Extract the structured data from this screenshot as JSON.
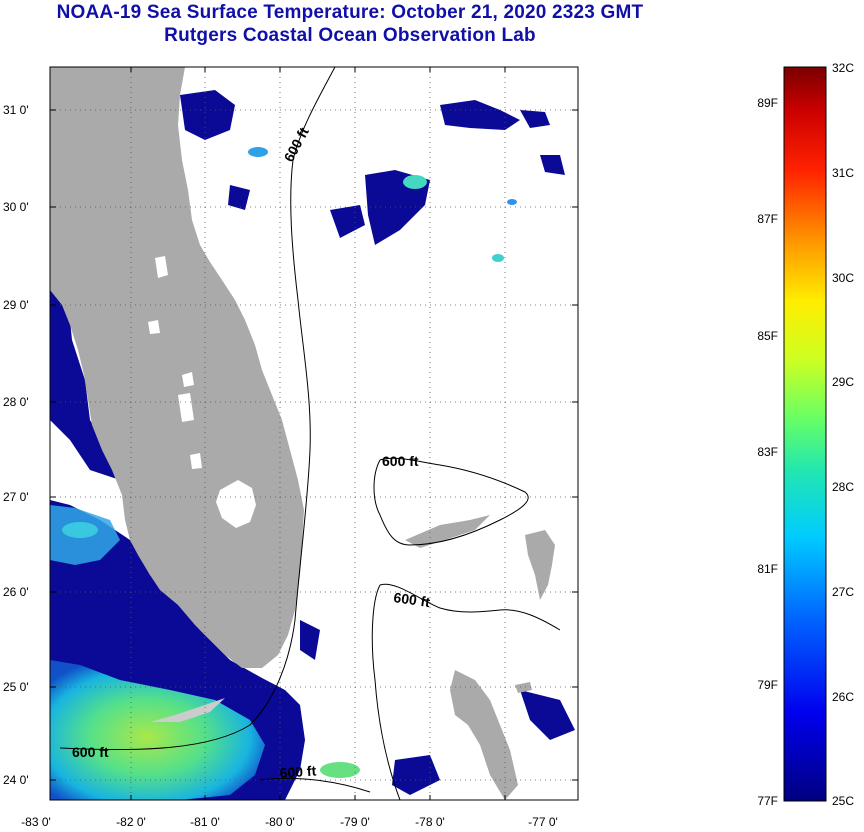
{
  "title": {
    "line1": "NOAA-19 Sea Surface Temperature:  October 21, 2020 2323 GMT",
    "line2": "Rutgers Coastal Ocean Observation Lab"
  },
  "map": {
    "lon_labels": [
      "-83 0'",
      "-82 0'",
      "-81 0'",
      "-80 0'",
      "-79 0'",
      "-78 0'",
      "-77 0'"
    ],
    "lat_labels": [
      "31 0'",
      "30 0'",
      "29 0'",
      "28 0'",
      "27 0'",
      "26 0'",
      "25 0'",
      "24 0'"
    ],
    "contour_labels": [
      "600 ft",
      "600 ft",
      "600 ft",
      "600 ft",
      "600 ft"
    ],
    "colors": {
      "land": "#aaaaaa",
      "no_data": "#ffffff",
      "cold_water": "#0a0a96"
    }
  },
  "colorbar": {
    "celsius": [
      "32C",
      "31C",
      "30C",
      "29C",
      "28C",
      "27C",
      "26C",
      "25C"
    ],
    "fahrenheit": [
      "89F",
      "87F",
      "85F",
      "83F",
      "81F",
      "79F",
      "77F"
    ],
    "range_c": [
      25,
      32
    ]
  }
}
